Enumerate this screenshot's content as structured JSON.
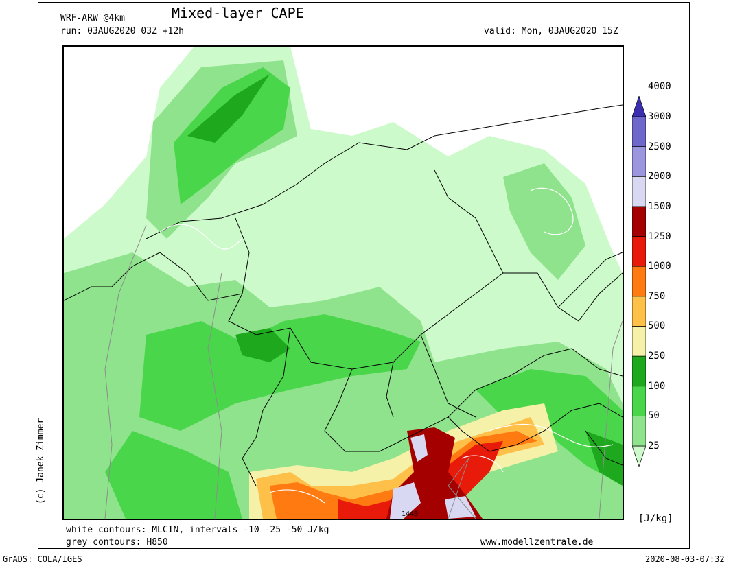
{
  "header": {
    "model": "WRF-ARW @4km",
    "title": "Mixed-layer CAPE",
    "run": "run: 03AUG2020 03Z +12h",
    "valid": "valid: Mon, 03AUG2020 15Z"
  },
  "footer": {
    "white_contours": "white contours: MLCIN, intervals -10 -25 -50 J/kg",
    "grey_contours": "grey contours: H850",
    "website": "www.modellzentrale.de",
    "grads": "GrADS: COLA/IGES",
    "timestamp": "2020-08-03-07:32"
  },
  "copyright": "(c) Janek Zimmer",
  "colorbar": {
    "unit": "[J/kg]",
    "levels": [
      "25",
      "50",
      "100",
      "250",
      "500",
      "750",
      "1000",
      "1250",
      "1500",
      "2000",
      "2500",
      "3000",
      "4000"
    ],
    "colors": [
      "#cdfacb",
      "#8fe38c",
      "#4ad64a",
      "#1ea81e",
      "#f5f1a8",
      "#ffc04a",
      "#ff7a10",
      "#e81a0a",
      "#a40000",
      "#d8d8f2",
      "#9b96de",
      "#6f68cc",
      "#3b2fb0"
    ]
  },
  "map_labels": {
    "contour_value": "1440"
  }
}
